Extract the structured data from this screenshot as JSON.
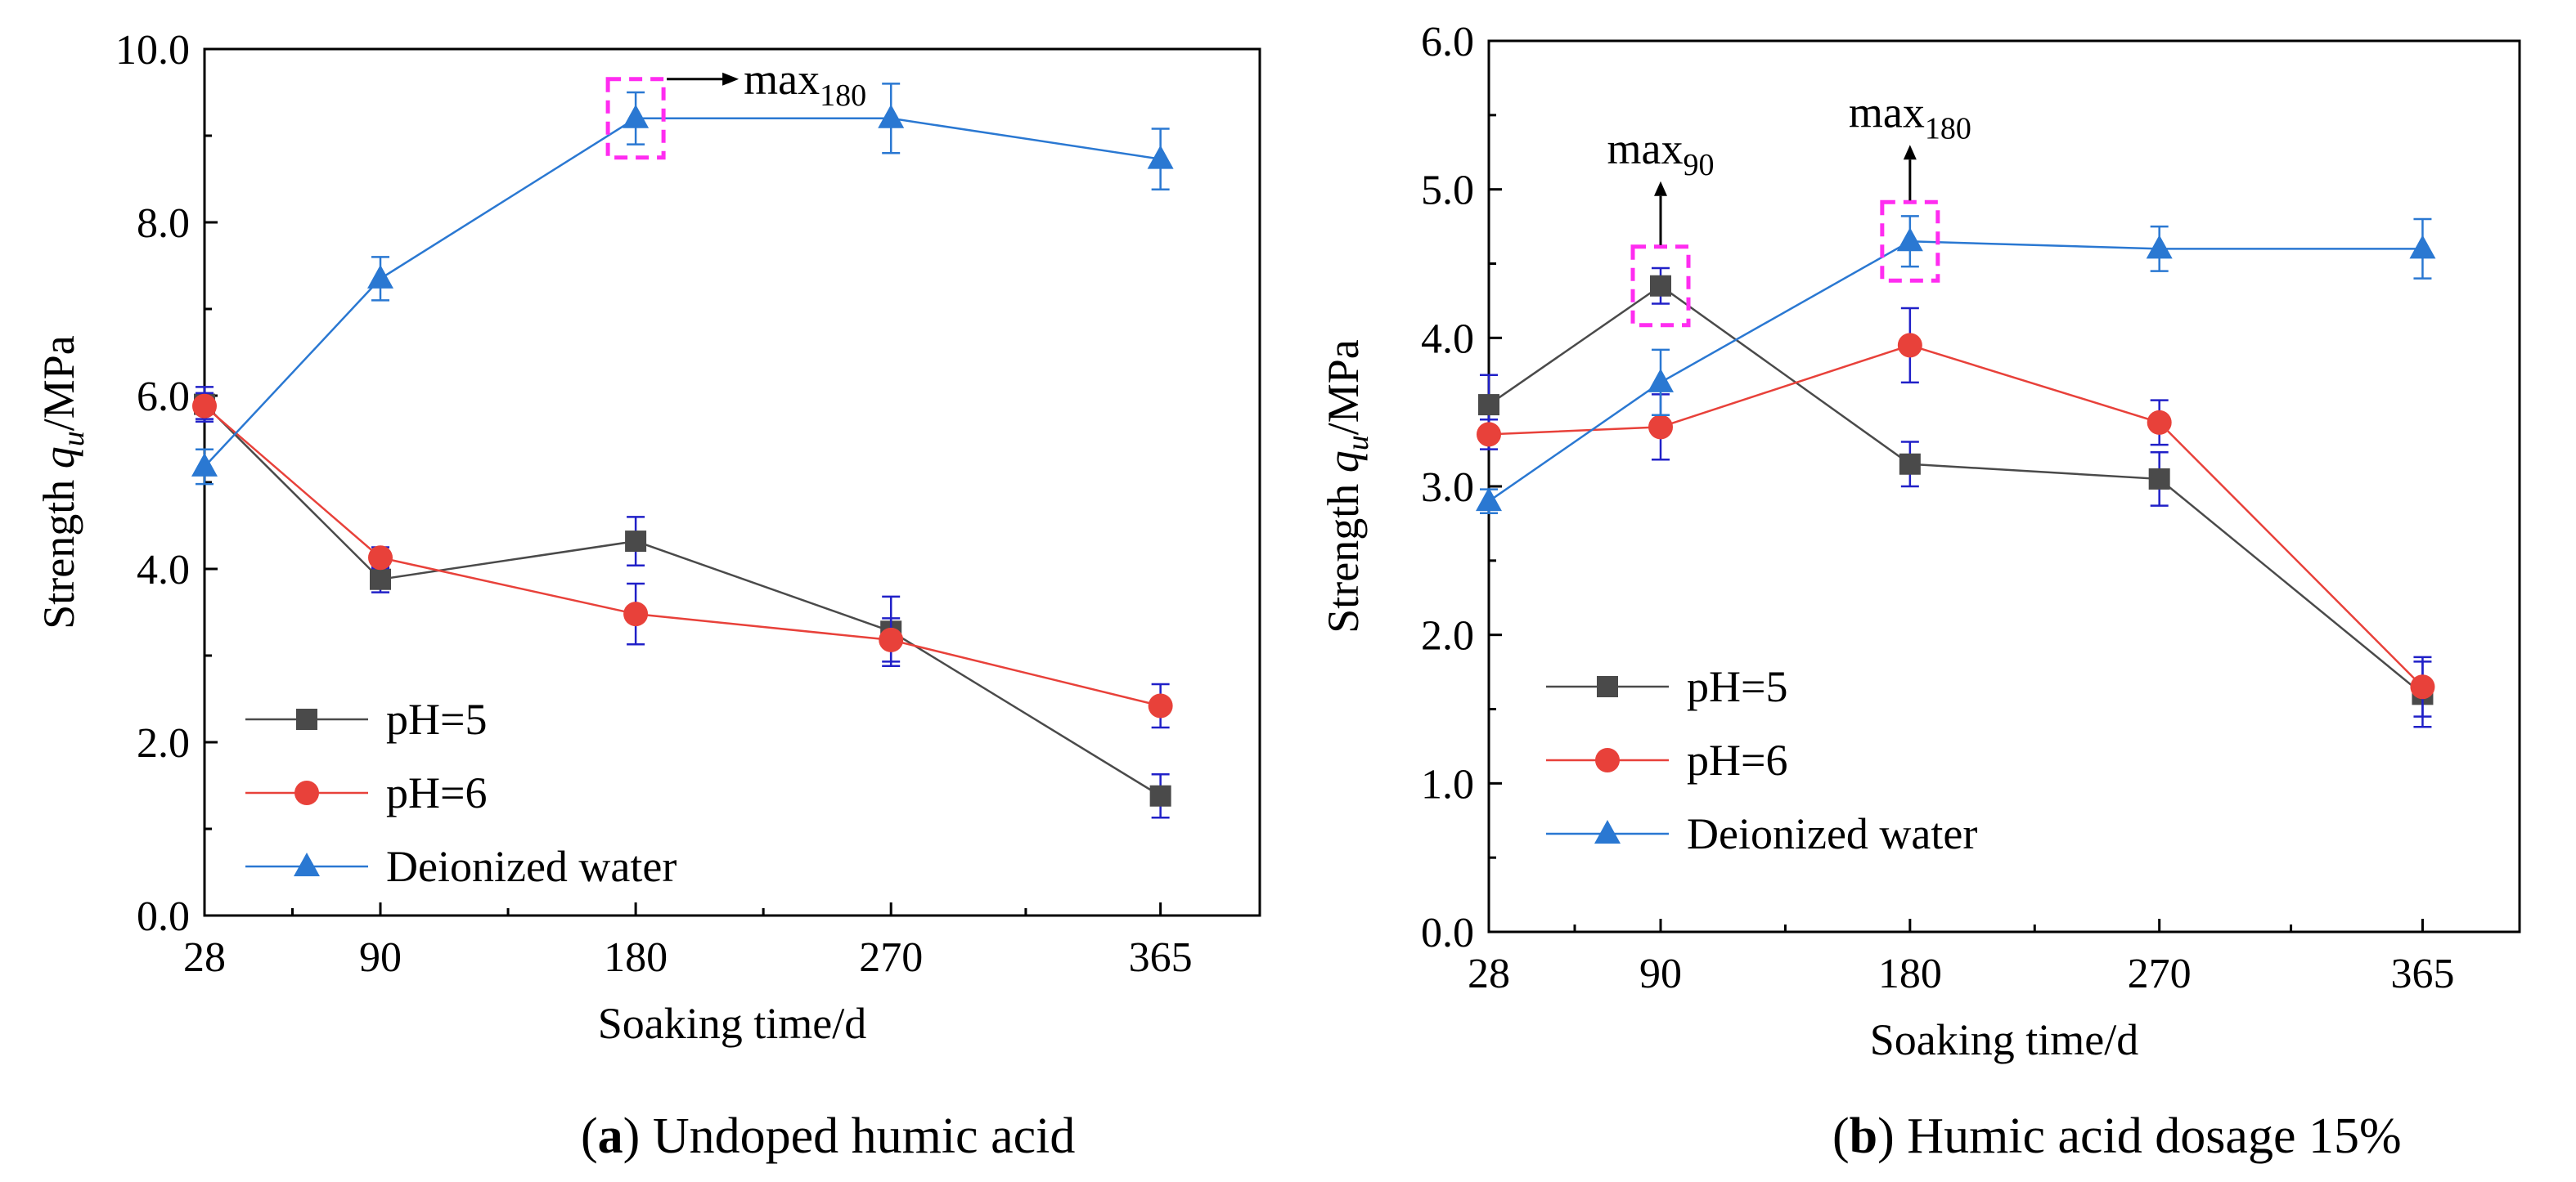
{
  "colors": {
    "ph5": "#4a4a4a",
    "ph6": "#e8413a",
    "water": "#2a78d2",
    "error_bar": "#2020c8",
    "highlight": "#ff2cf0",
    "axis": "#000000"
  },
  "chart_data": [
    {
      "type": "line",
      "panel_letter": "a",
      "title": " Undoped humic acid",
      "xlabel": "Soaking time/d",
      "ylabel_prefix": "Strength ",
      "ylabel_var": "q",
      "ylabel_sub": "u",
      "ylabel_suffix": "/MPa",
      "x": [
        28,
        90,
        180,
        270,
        365
      ],
      "xlim": [
        28,
        400
      ],
      "xticks": [
        "28",
        "90",
        "180",
        "270",
        "365"
      ],
      "ylim": [
        0,
        10
      ],
      "yticks": [
        "0.0",
        "2.0",
        "4.0",
        "6.0",
        "8.0",
        "10.0"
      ],
      "series": [
        {
          "name": "pH=5",
          "key": "ph5",
          "marker": "square",
          "values": [
            5.9,
            3.88,
            4.32,
            3.28,
            1.38
          ],
          "errors": [
            0.2,
            0.15,
            0.28,
            0.4,
            0.25
          ]
        },
        {
          "name": "pH=6",
          "key": "ph6",
          "marker": "circle",
          "values": [
            5.88,
            4.13,
            3.48,
            3.18,
            2.42
          ],
          "errors": [
            0.15,
            0.12,
            0.35,
            0.25,
            0.25
          ]
        },
        {
          "name": "Deionized water",
          "key": "water",
          "marker": "triangle",
          "values": [
            5.18,
            7.35,
            9.2,
            9.2,
            8.73
          ],
          "errors": [
            0.2,
            0.25,
            0.3,
            0.4,
            0.35
          ]
        }
      ],
      "annotations": [
        {
          "text": "max",
          "sub": "180",
          "x": 180,
          "y": 9.2
        }
      ]
    },
    {
      "type": "line",
      "panel_letter": "b",
      "title": " Humic acid dosage 15%",
      "xlabel": "Soaking time/d",
      "ylabel_prefix": "Strength ",
      "ylabel_var": "q",
      "ylabel_sub": "u",
      "ylabel_suffix": "/MPa",
      "x": [
        28,
        90,
        180,
        270,
        365
      ],
      "xlim": [
        28,
        400
      ],
      "xticks": [
        "28",
        "90",
        "180",
        "270",
        "365"
      ],
      "ylim": [
        0,
        6
      ],
      "yticks": [
        "0.0",
        "1.0",
        "2.0",
        "3.0",
        "4.0",
        "5.0",
        "6.0"
      ],
      "series": [
        {
          "name": "pH=5",
          "key": "ph5",
          "marker": "square",
          "values": [
            3.55,
            4.35,
            3.15,
            3.05,
            1.6
          ],
          "errors": [
            0.2,
            0.12,
            0.15,
            0.18,
            0.22
          ]
        },
        {
          "name": "pH=6",
          "key": "ph6",
          "marker": "circle",
          "values": [
            3.35,
            3.4,
            3.95,
            3.43,
            1.65
          ],
          "errors": [
            0.1,
            0.22,
            0.25,
            0.15,
            0.2
          ]
        },
        {
          "name": "Deionized water",
          "key": "water",
          "marker": "triangle",
          "values": [
            2.9,
            3.7,
            4.65,
            4.6,
            4.6
          ],
          "errors": [
            0.08,
            0.22,
            0.17,
            0.15,
            0.2
          ]
        }
      ],
      "annotations": [
        {
          "text": "max",
          "sub": "90",
          "x": 90,
          "y": 4.35
        },
        {
          "text": "max",
          "sub": "180",
          "x": 180,
          "y": 4.65
        }
      ]
    }
  ]
}
